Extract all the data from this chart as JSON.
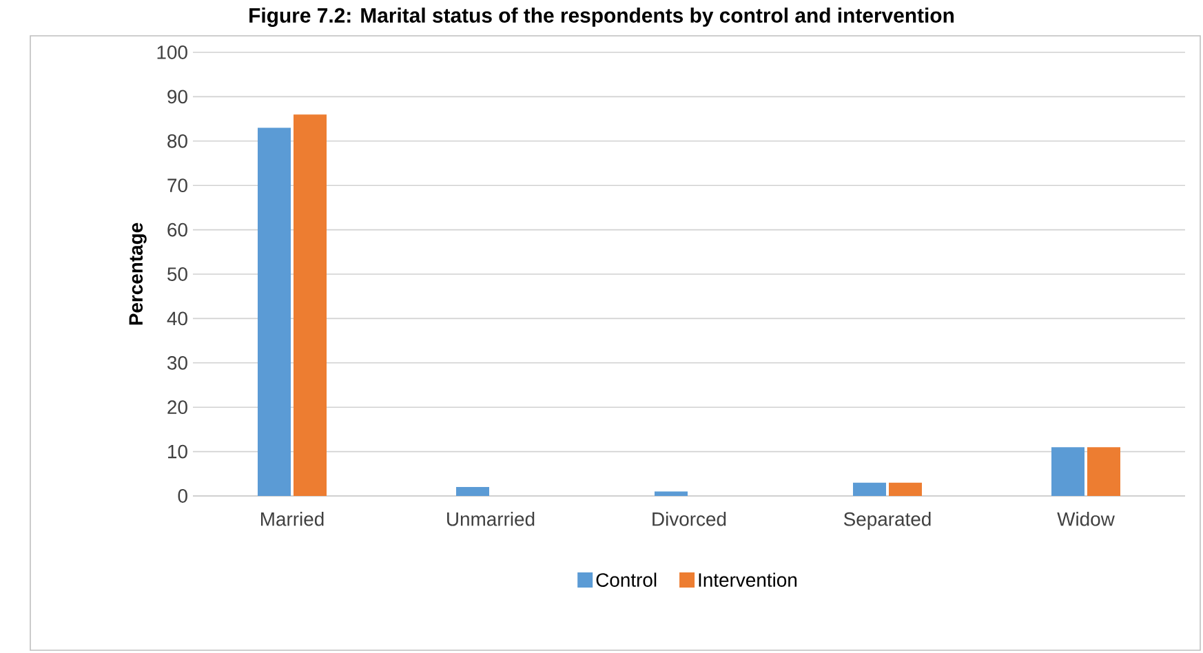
{
  "chart_data": {
    "type": "bar",
    "title": "Figure 7.2: Marital status of the respondents by control and intervention",
    "ylabel": "Percentage",
    "categories": [
      "Married",
      "Unmarried",
      "Divorced",
      "Separated",
      "Widow"
    ],
    "series": [
      {
        "name": "Control",
        "color": "#5b9bd5",
        "values": [
          83,
          2,
          1,
          3,
          11
        ]
      },
      {
        "name": "Intervention",
        "color": "#ed7d31",
        "values": [
          86,
          0,
          0,
          3,
          11
        ]
      }
    ],
    "ylim": [
      0,
      100
    ],
    "yticks": [
      0,
      10,
      20,
      30,
      40,
      50,
      60,
      70,
      80,
      90,
      100
    ],
    "grid": "y",
    "legend": "bottom"
  }
}
